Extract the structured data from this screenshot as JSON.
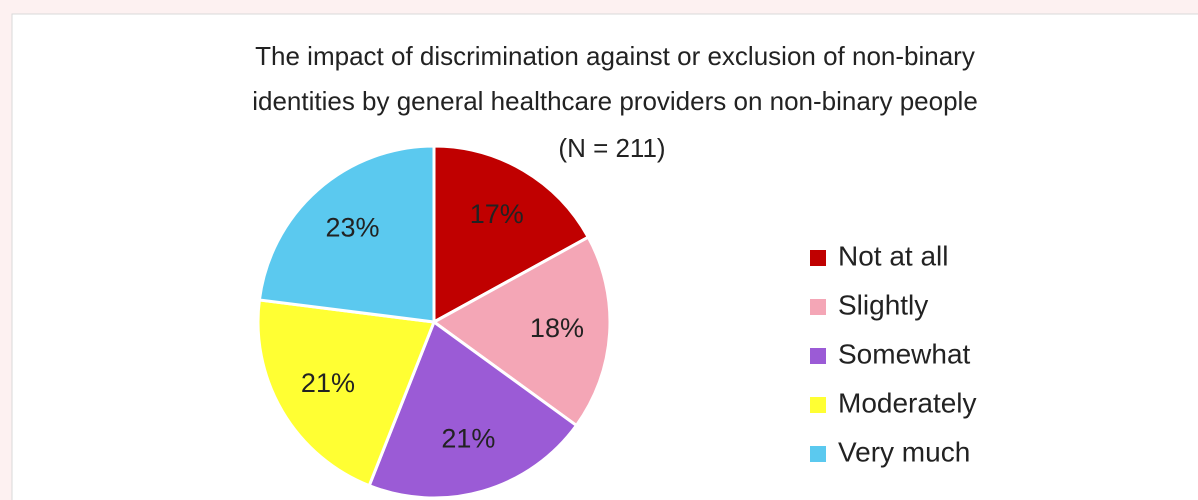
{
  "chart_data": {
    "type": "pie",
    "title": [
      "The impact of discrimination against or exclusion of non-binary",
      "identities by general healthcare providers on non-binary people"
    ],
    "subtitle": "(N = 211)",
    "categories": [
      "Not at all",
      "Slightly",
      "Somewhat",
      "Moderately",
      "Very much"
    ],
    "values": [
      17,
      18,
      21,
      21,
      23
    ],
    "value_labels": [
      "17%",
      "18%",
      "21%",
      "21%",
      "23%"
    ],
    "colors": [
      "#c00000",
      "#f4a6b6",
      "#9b5bd6",
      "#ffff33",
      "#5bc9ef"
    ],
    "legend": "right"
  }
}
